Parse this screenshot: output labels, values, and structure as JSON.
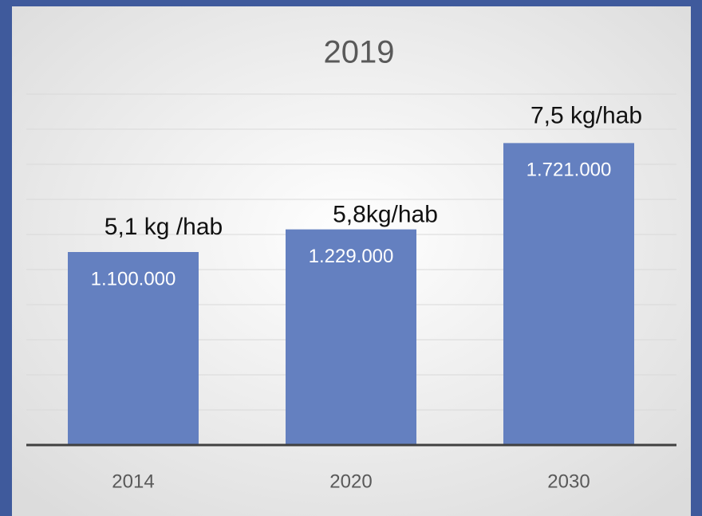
{
  "chart_data": {
    "type": "bar",
    "title": "2019",
    "categories": [
      "2014",
      "2020",
      "2030"
    ],
    "values": [
      1100000,
      1229000,
      1721000
    ],
    "value_labels": [
      "1.100.000",
      "1.229.000",
      "1.721.000"
    ],
    "annotations": [
      "5,1 kg /hab",
      "5,8kg/hab",
      "7,5 kg/hab"
    ],
    "color": "#6480c0",
    "ylim": [
      0,
      2000000
    ],
    "yticks": [
      0,
      200000,
      400000,
      600000,
      800000,
      1000000,
      1200000,
      1400000,
      1600000,
      1800000,
      2000000
    ],
    "grid": true
  }
}
